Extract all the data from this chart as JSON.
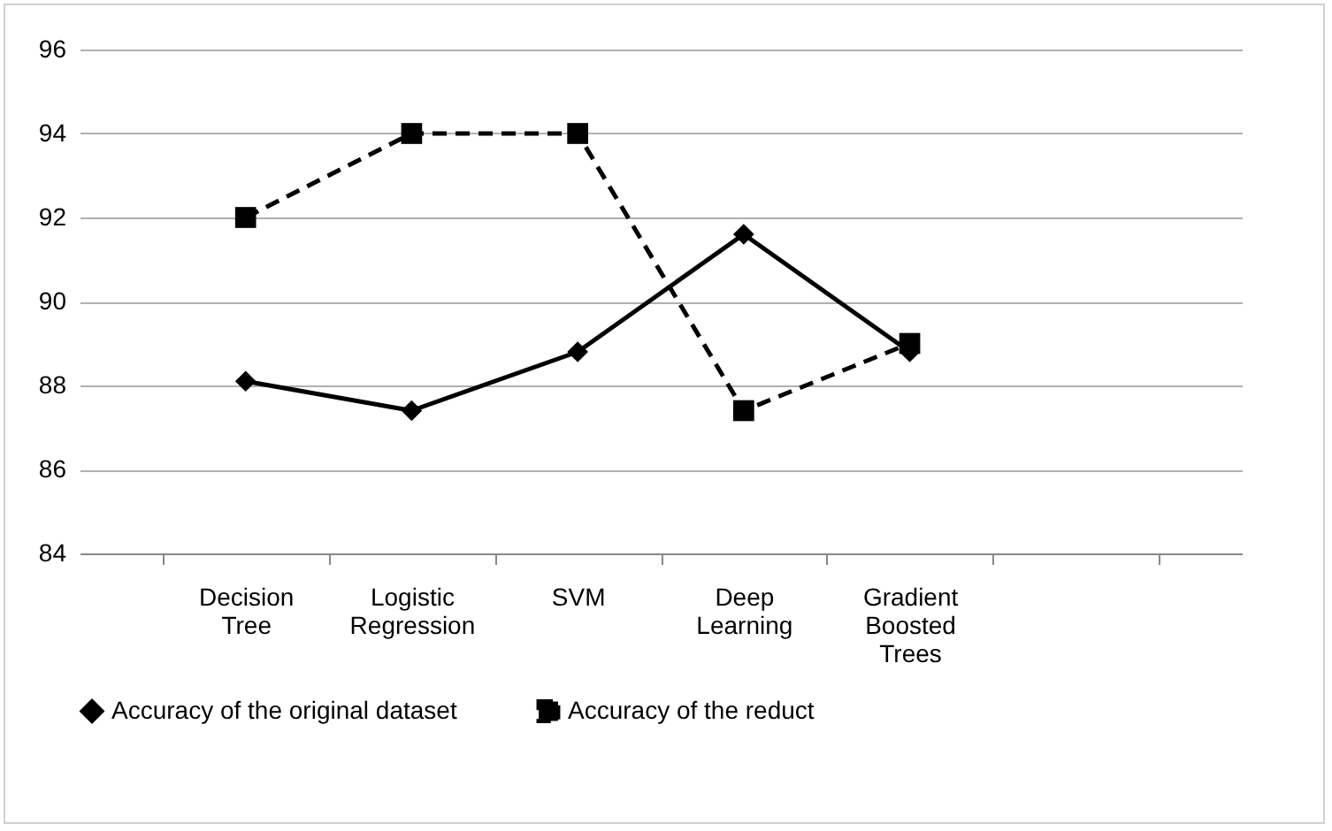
{
  "chart_data": {
    "type": "line",
    "categories": [
      "Decision Tree",
      "Logistic Regression",
      "SVM",
      "Deep Learning",
      "Gradient Boosted Trees",
      null
    ],
    "series": [
      {
        "name": "Accuracy of the original dataset",
        "color": "#000000",
        "marker": "diamond",
        "line_style": "solid",
        "values": [
          88.1,
          87.4,
          88.8,
          91.6,
          88.8,
          null
        ]
      },
      {
        "name": "Accuracy of the reduct",
        "color": "#000000",
        "marker": "square",
        "line_style": "dashed",
        "values": [
          92,
          94,
          94,
          87.4,
          89,
          null
        ]
      }
    ],
    "ylim": [
      84,
      96
    ],
    "yticks": [
      84,
      86,
      88,
      90,
      92,
      94,
      96
    ],
    "grid": "y",
    "legend": "bottom"
  }
}
